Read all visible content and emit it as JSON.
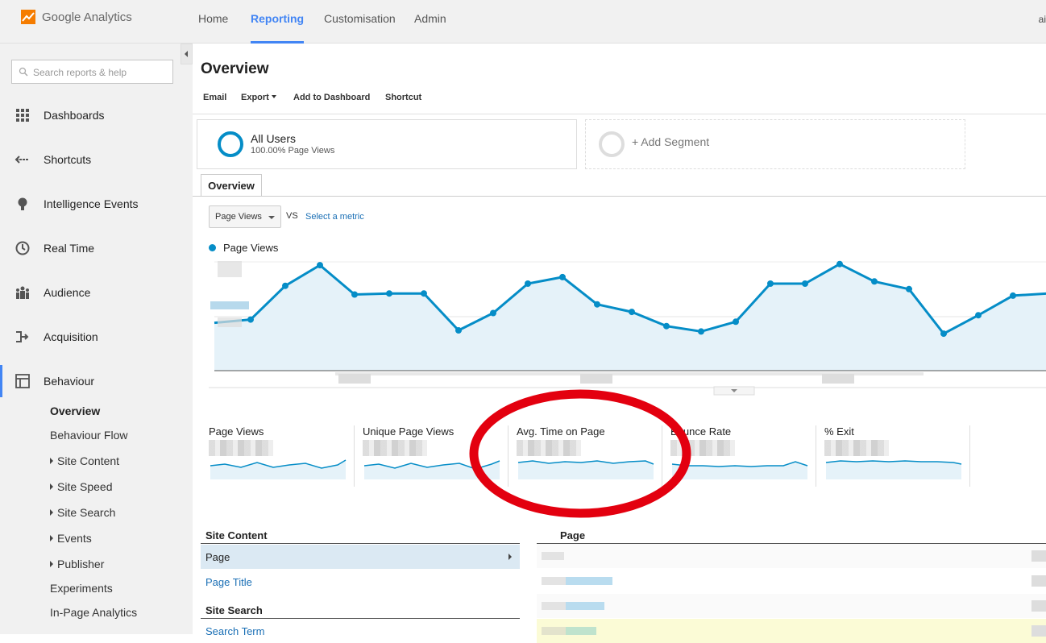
{
  "app": {
    "name": "Google Analytics",
    "user_initial": "ai"
  },
  "topnav": [
    "Home",
    "Reporting",
    "Customisation",
    "Admin"
  ],
  "search": {
    "placeholder": "Search reports & help"
  },
  "sidebar": {
    "items": [
      {
        "label": "Dashboards",
        "icon": "grid-icon"
      },
      {
        "label": "Shortcuts",
        "icon": "shortcut-arrow-icon"
      },
      {
        "label": "Intelligence Events",
        "icon": "lightbulb-icon"
      },
      {
        "label": "Real Time",
        "icon": "clock-icon"
      },
      {
        "label": "Audience",
        "icon": "people-icon"
      },
      {
        "label": "Acquisition",
        "icon": "acquisition-arrows-icon"
      },
      {
        "label": "Behaviour",
        "icon": "behaviour-layout-icon"
      }
    ],
    "behaviour_sub": [
      "Overview",
      "Behaviour Flow",
      "Site Content",
      "Site Speed",
      "Site Search",
      "Events",
      "Publisher",
      "Experiments",
      "In-Page Analytics"
    ]
  },
  "page": {
    "title": "Overview",
    "toolbar": [
      "Email",
      "Export",
      "Add to Dashboard",
      "Shortcut"
    ],
    "segments": {
      "active_name": "All Users",
      "active_sub": "100.00% Page Views",
      "add_label": "+ Add Segment"
    },
    "tab": "Overview",
    "metric_select": "Page Views",
    "vs": "VS",
    "select_metric": "Select a metric",
    "legend": "Page Views"
  },
  "chart_data": {
    "type": "area",
    "series": [
      {
        "name": "Page Views",
        "values": [
          47,
          78,
          97,
          70,
          71,
          71,
          37,
          53,
          80,
          86,
          61,
          54,
          41,
          36,
          45,
          80,
          80,
          98,
          82,
          75,
          34,
          51,
          69,
          71
        ]
      }
    ],
    "color": "#058dc7",
    "ylim": [
      0,
      100
    ]
  },
  "sparklines": [
    {
      "title": "Page Views"
    },
    {
      "title": "Unique Page Views"
    },
    {
      "title": "Avg. Time on Page"
    },
    {
      "title": "Bounce Rate"
    },
    {
      "title": "% Exit"
    }
  ],
  "bottom": {
    "site_content_heading": "Site Content",
    "page_row": "Page",
    "page_title_link": "Page Title",
    "site_search_heading": "Site Search",
    "search_term_link": "Search Term",
    "table_heading": "Page"
  },
  "colors": {
    "accent": "#4285f4",
    "series": "#058dc7",
    "annotation": "#e3000f"
  }
}
